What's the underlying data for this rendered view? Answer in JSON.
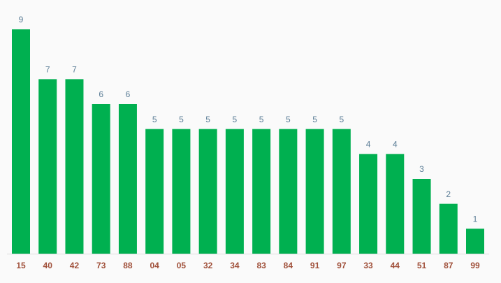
{
  "chart_data": {
    "type": "bar",
    "categories": [
      "15",
      "40",
      "42",
      "73",
      "88",
      "04",
      "05",
      "32",
      "34",
      "83",
      "84",
      "91",
      "97",
      "33",
      "44",
      "51",
      "87",
      "99"
    ],
    "values": [
      9,
      7,
      7,
      6,
      6,
      5,
      5,
      5,
      5,
      5,
      5,
      5,
      5,
      4,
      4,
      3,
      2,
      1
    ],
    "color": "#00b050"
  }
}
